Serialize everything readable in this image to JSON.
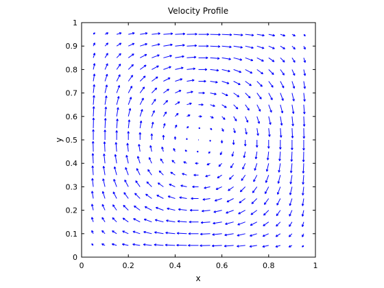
{
  "chart_data": {
    "type": "quiver",
    "title": "Velocity Profile",
    "xlabel": "x",
    "ylabel": "y",
    "xlim": [
      0,
      1
    ],
    "ylim": [
      0,
      1
    ],
    "xticks": [
      "0",
      "0.2",
      "0.4",
      "0.6",
      "0.8",
      "1"
    ],
    "yticks": [
      "0",
      "0.1",
      "0.2",
      "0.3",
      "0.4",
      "0.5",
      "0.6",
      "0.7",
      "0.8",
      "0.9",
      "1"
    ],
    "grid": false,
    "arrow_color": "#0000ff",
    "vector_field": {
      "grid_x": [
        0.05,
        0.1,
        0.15,
        0.2,
        0.25,
        0.3,
        0.35,
        0.4,
        0.45,
        0.5,
        0.55,
        0.6,
        0.65,
        0.7,
        0.75,
        0.8,
        0.85,
        0.9,
        0.95
      ],
      "grid_y": [
        0.05,
        0.1,
        0.15,
        0.2,
        0.25,
        0.3,
        0.35,
        0.4,
        0.45,
        0.5,
        0.55,
        0.6,
        0.65,
        0.7,
        0.75,
        0.8,
        0.85,
        0.9,
        0.95
      ],
      "u_formula": "-sin(pi*x)*cos(pi*y)",
      "v_formula": "cos(pi*x)*sin(pi*y)",
      "scale": 0.045,
      "rotation": "counter-clockwise",
      "center": [
        0.5,
        0.5
      ]
    }
  }
}
